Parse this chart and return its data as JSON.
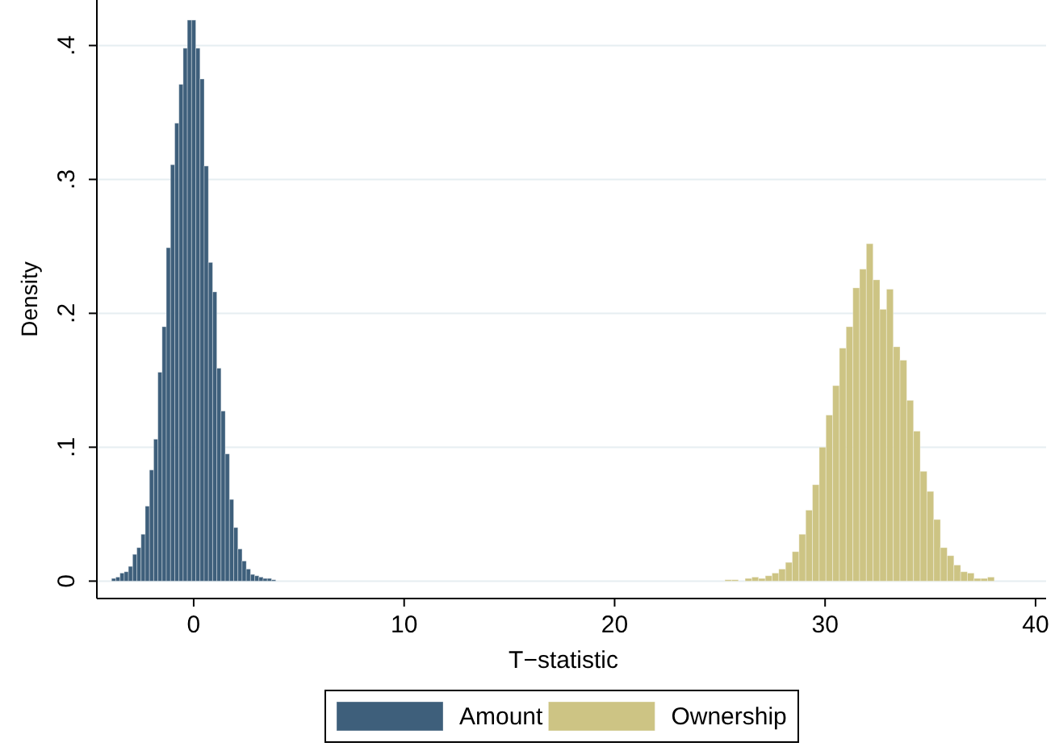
{
  "chart_data": {
    "type": "histogram",
    "xlabel": "T−statistic",
    "ylabel": "Density",
    "xlim": [
      -4.6,
      40.5
    ],
    "xticks": [
      0,
      10,
      20,
      30,
      40
    ],
    "ylim": [
      -0.013,
      0.434
    ],
    "yticks": [
      {
        "value": 0,
        "label": "0"
      },
      {
        "value": 0.1,
        "label": ".1"
      },
      {
        "value": 0.2,
        "label": ".2"
      },
      {
        "value": 0.3,
        "label": ".3"
      },
      {
        "value": 0.4,
        "label": ".4"
      }
    ],
    "grid": "y",
    "legend": "bottom",
    "bins": [
      -3.9,
      -3.7,
      -3.5,
      -3.3,
      -3.1,
      -2.9,
      -2.7,
      -2.5,
      -2.3,
      -2.1,
      -1.9,
      -1.7,
      -1.5,
      -1.3,
      -1.1,
      -0.9,
      -0.7,
      -0.5,
      -0.3,
      -0.1,
      0.1,
      0.3,
      0.5,
      0.7,
      0.9,
      1.1,
      1.3,
      1.5,
      1.7,
      1.9,
      2.1,
      2.3,
      2.5,
      2.7,
      2.9,
      3.1,
      3.3,
      3.5,
      3.7,
      3.9,
      25.24,
      25.56,
      25.88,
      26.2,
      26.52,
      26.84,
      27.16,
      27.48,
      27.8,
      28.12,
      28.44,
      28.76,
      29.08,
      29.4,
      29.72,
      30.04,
      30.36,
      30.68,
      31.0,
      31.32,
      31.64,
      31.96,
      32.28,
      32.6,
      32.92,
      33.24,
      33.56,
      33.88,
      34.2,
      34.52,
      34.84,
      35.16,
      35.48,
      35.8,
      36.12,
      36.44,
      36.76,
      37.08,
      37.4,
      37.72,
      38.04
    ],
    "series": [
      {
        "name": "Amount",
        "color": "#3e5f7b",
        "values": [
          0.002,
          0.003,
          0.006,
          0.007,
          0.011,
          0.02,
          0.025,
          0.035,
          0.056,
          0.083,
          0.106,
          0.156,
          0.19,
          0.249,
          0.311,
          0.342,
          0.371,
          0.398,
          0.419,
          0.419,
          0.398,
          0.375,
          0.31,
          0.238,
          0.216,
          0.159,
          0.127,
          0.095,
          0.061,
          0.04,
          0.024,
          0.015,
          0.009,
          0.005,
          0.004,
          0.003,
          0.002,
          0.002,
          0.001,
          null,
          null,
          null,
          null,
          null,
          null,
          null,
          null,
          null,
          null,
          null,
          null,
          null,
          null,
          null,
          null,
          null,
          null,
          null,
          null,
          null,
          null,
          null,
          null,
          null,
          null,
          null,
          null,
          null,
          null,
          null,
          null,
          null,
          null,
          null,
          null,
          null,
          null,
          null,
          null,
          null
        ]
      },
      {
        "name": "Ownership",
        "color": "#cdc484",
        "values": [
          null,
          null,
          null,
          null,
          null,
          null,
          null,
          null,
          null,
          null,
          null,
          null,
          null,
          null,
          null,
          null,
          null,
          null,
          null,
          null,
          null,
          null,
          null,
          null,
          null,
          null,
          null,
          null,
          null,
          null,
          null,
          null,
          null,
          null,
          null,
          null,
          null,
          null,
          null,
          null,
          0.001,
          0.001,
          0,
          0.002,
          0.003,
          0.002,
          0.004,
          0.006,
          0.009,
          0.014,
          0.022,
          0.035,
          0.053,
          0.072,
          0.1,
          0.124,
          0.146,
          0.174,
          0.19,
          0.219,
          0.233,
          0.252,
          0.225,
          0.203,
          0.218,
          0.175,
          0.165,
          0.135,
          0.112,
          0.082,
          0.067,
          0.046,
          0.025,
          0.019,
          0.012,
          0.007,
          0.006,
          0.002,
          0.002,
          0.003
        ]
      }
    ]
  }
}
